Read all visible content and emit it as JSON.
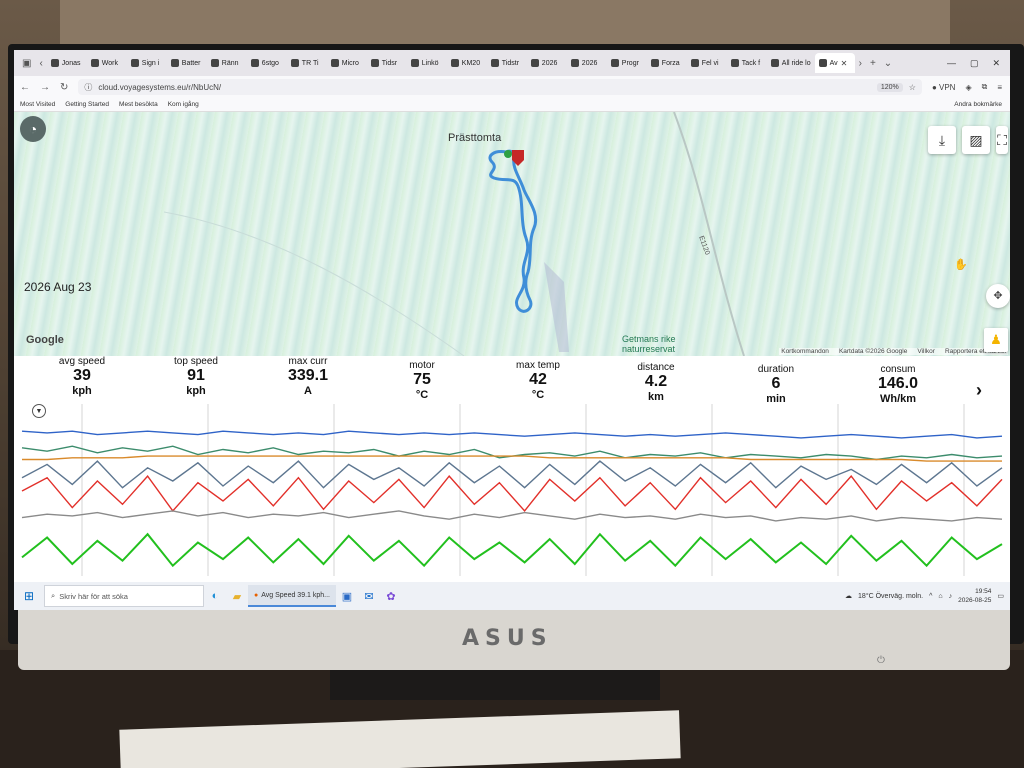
{
  "browser": {
    "tabs": [
      {
        "label": "Jonas"
      },
      {
        "label": "Work"
      },
      {
        "label": "Sign i"
      },
      {
        "label": "Batter"
      },
      {
        "label": "Ränn"
      },
      {
        "label": "6stgo"
      },
      {
        "label": "TR Ti"
      },
      {
        "label": "Micro"
      },
      {
        "label": "Tidsr"
      },
      {
        "label": "Linkö"
      },
      {
        "label": "KM20"
      },
      {
        "label": "Tidstr"
      },
      {
        "label": "2026"
      },
      {
        "label": "2026"
      },
      {
        "label": "Progr"
      },
      {
        "label": "Forza"
      },
      {
        "label": "Fel vi"
      },
      {
        "label": "Tack f"
      },
      {
        "label": "All ride lo"
      },
      {
        "label": "Av"
      }
    ],
    "active_tab_index": 19,
    "url": "cloud.voyagesystems.eu/r/NbUcN/",
    "zoom": "120%",
    "vpn_label": "VPN",
    "bookmarks": [
      "Most Visited",
      "Getting Started",
      "Mest besökta",
      "Kom igång"
    ],
    "other_bookmarks": "Andra bokmärke"
  },
  "map": {
    "date": "2026 Aug 23",
    "place": "Prästtomta",
    "road_label": "E1120",
    "reserve_label_1": "Getmans rike",
    "reserve_label_2": "naturreservat",
    "google_label": "Google",
    "attribution": [
      "Kortkommandon",
      "Kartdata ©2026 Google",
      "Villkor",
      "Rapportera ett kartfel"
    ],
    "buttons": [
      "download-icon",
      "image-icon",
      "fullscreen-icon"
    ]
  },
  "stats": [
    {
      "label": "avg speed",
      "value": "39",
      "unit": "kph"
    },
    {
      "label": "top speed",
      "value": "91",
      "unit": "kph"
    },
    {
      "label": "max curr",
      "value": "339.1",
      "unit": "A"
    },
    {
      "label": "motor",
      "value": "75",
      "unit": "°C"
    },
    {
      "label": "max temp",
      "value": "42",
      "unit": "°C"
    },
    {
      "label": "distance",
      "value": "4.2",
      "unit": "km"
    },
    {
      "label": "duration",
      "value": "6",
      "unit": "min"
    },
    {
      "label": "consum",
      "value": "146.0",
      "unit": "Wh/km"
    }
  ],
  "colors": {
    "blue": "#2f63c8",
    "teal": "#3c8c6c",
    "orange": "#d98a2b",
    "slate": "#5d7690",
    "red": "#e2302a",
    "green": "#22c01e",
    "gray": "#8a8a8a"
  },
  "chart_data": {
    "type": "line",
    "series": [
      {
        "color": "blue",
        "values": [
          86,
          85,
          86,
          84,
          85,
          86,
          85,
          84,
          86,
          85,
          84,
          85,
          84,
          86,
          85,
          84,
          85,
          84,
          85,
          84,
          83,
          84,
          85,
          84,
          83,
          84,
          83,
          84,
          85,
          84,
          83,
          82,
          83,
          84,
          83,
          82,
          83,
          84,
          82,
          83
        ]
      },
      {
        "color": "teal",
        "values": [
          76,
          74,
          77,
          73,
          76,
          74,
          77,
          72,
          75,
          73,
          76,
          72,
          74,
          73,
          75,
          71,
          74,
          72,
          75,
          70,
          72,
          73,
          71,
          74,
          70,
          72,
          71,
          73,
          70,
          72,
          71,
          70,
          72,
          71,
          69,
          71,
          70,
          72,
          70,
          71
        ]
      },
      {
        "color": "orange",
        "values": [
          69,
          69,
          70,
          70,
          70,
          71,
          71,
          71,
          71,
          71,
          71,
          71,
          71,
          71,
          71,
          71,
          71,
          71,
          71,
          71,
          71,
          70,
          70,
          70,
          70,
          70,
          70,
          70,
          70,
          69,
          69,
          69,
          69,
          69,
          69,
          69,
          68,
          68,
          68,
          68
        ]
      },
      {
        "color": "slate",
        "values": [
          58,
          66,
          54,
          68,
          52,
          64,
          56,
          67,
          53,
          65,
          55,
          68,
          52,
          66,
          57,
          64,
          53,
          67,
          55,
          65,
          52,
          66,
          54,
          68,
          56,
          64,
          53,
          66,
          55,
          67,
          52,
          65,
          57,
          63,
          54,
          66,
          55,
          67,
          53,
          64
        ]
      },
      {
        "color": "red",
        "values": [
          50,
          58,
          40,
          56,
          42,
          59,
          38,
          55,
          44,
          57,
          41,
          58,
          39,
          56,
          43,
          57,
          40,
          59,
          42,
          55,
          38,
          57,
          44,
          58,
          41,
          55,
          39,
          58,
          43,
          56,
          40,
          57,
          42,
          59,
          39,
          56,
          44,
          55,
          41,
          57
        ]
      },
      {
        "color": "gray",
        "values": [
          34,
          36,
          35,
          37,
          34,
          36,
          38,
          35,
          37,
          34,
          36,
          35,
          37,
          34,
          36,
          38,
          35,
          33,
          36,
          34,
          37,
          35,
          33,
          36,
          34,
          35,
          33,
          36,
          34,
          35,
          32,
          34,
          33,
          35,
          32,
          34,
          33,
          32,
          34,
          33
        ]
      },
      {
        "color": "green",
        "values": [
          10,
          22,
          6,
          20,
          8,
          24,
          5,
          19,
          9,
          22,
          7,
          21,
          6,
          23,
          8,
          20,
          5,
          22,
          9,
          19,
          7,
          21,
          6,
          24,
          8,
          20,
          5,
          22,
          9,
          21,
          7,
          19,
          6,
          23,
          8,
          20,
          5,
          22,
          9,
          18
        ]
      }
    ],
    "ylim": [
      0,
      100
    ]
  },
  "taskbar": {
    "search_placeholder": "Skriv här för att söka",
    "app_title": "Avg Speed 39.1 kph...",
    "weather": "18°C  Överväg. moln.",
    "time": "19:54",
    "date": "2026-08-25"
  },
  "monitor": {
    "brand": "ASUS"
  }
}
